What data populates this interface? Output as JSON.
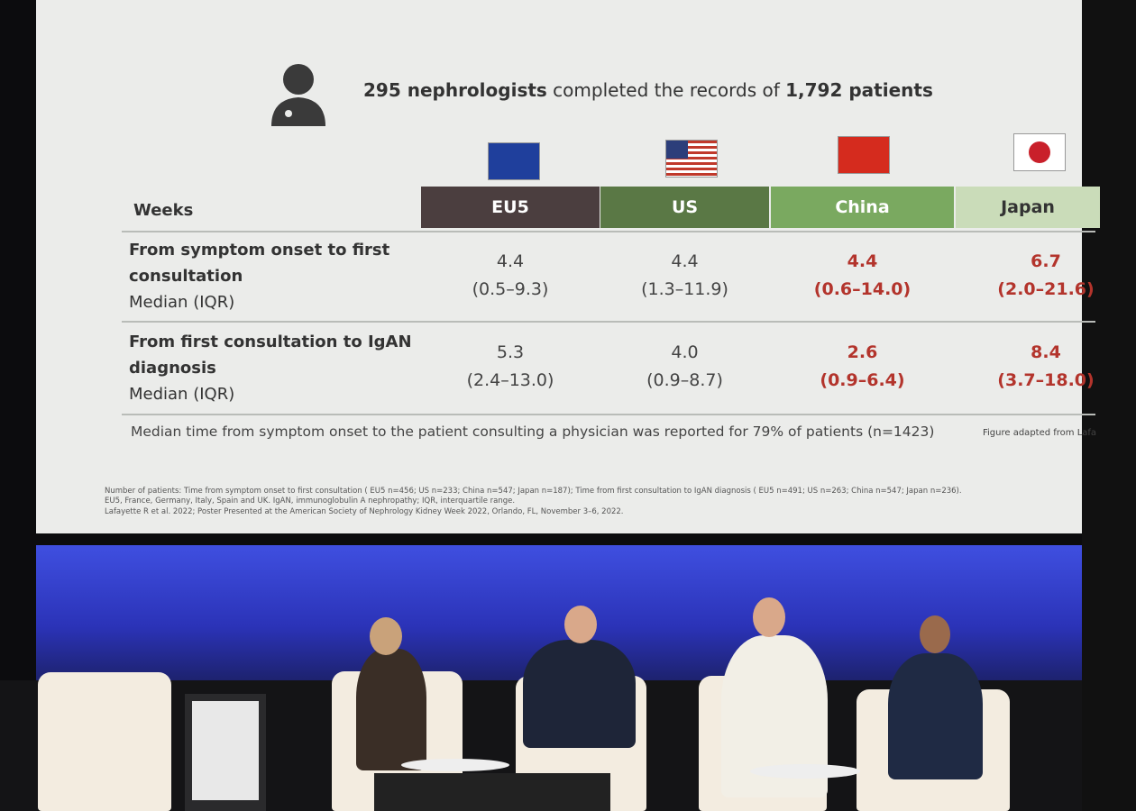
{
  "slide": {
    "headline": {
      "bold_1": "295 nephrologists",
      "text": "completed the records of",
      "bold_2": "1,792 patients"
    },
    "table": {
      "header": [
        "Weeks",
        "EU5",
        "US",
        "China",
        "Japan"
      ],
      "rows": [
        {
          "label": [
            "From symptom onset to first",
            "consultation"
          ],
          "sub": "Median (IQR)",
          "cells": [
            {
              "median": "4.4",
              "iqr": "(0.5–9.3)"
            },
            {
              "median": "4.4",
              "iqr": "(1.3–11.9)"
            },
            {
              "median": "4.4",
              "iqr": "(0.6–14.0)"
            },
            {
              "median": "6.7",
              "iqr": "(2.0–21.6)"
            }
          ]
        },
        {
          "label": [
            "From first consultation to IgAN",
            "diagnosis"
          ],
          "sub": "Median (IQR)",
          "cells": [
            {
              "median": "5.3",
              "iqr": "(2.4–13.0)"
            },
            {
              "median": "4.0",
              "iqr": "(0.9–8.7)"
            },
            {
              "median": "2.6",
              "iqr": "(0.9–6.4)"
            },
            {
              "median": "8.4",
              "iqr": "(3.7–18.0)"
            }
          ]
        }
      ]
    },
    "note": "Median time from symptom onset to the patient consulting a physician was reported for 79% of patients (n=1423)",
    "source": "Figure adapted from Lafa",
    "footnotes": [
      "Number of patients: Time from symptom onset to first consultation ( EU5 n=456; US n=233; China n=547; Japan n=187); Time from first consultation to IgAN diagnosis ( EU5 n=491; US n=263; China n=547; Japan n=236).",
      "EU5, France, Germany, Italy, Spain and UK. IgAN, immunoglobulin A nephropathy; IQR, interquartile range.",
      "Lafayette R et al. 2022; Poster Presented at the American Society of Nephrology Kidney Week 2022, Orlando, FL,  November 3–6, 2022."
    ]
  }
}
